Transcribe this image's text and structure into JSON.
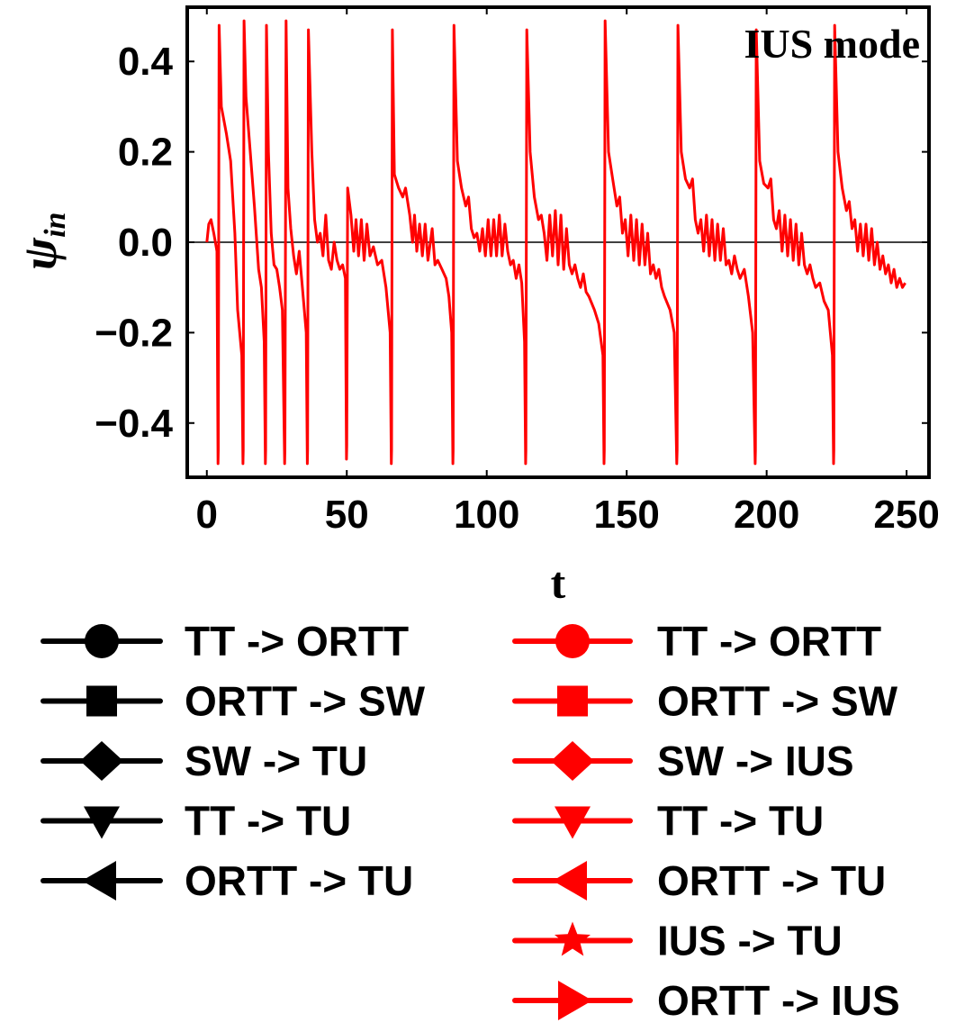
{
  "chart_data": {
    "type": "line",
    "title": "IUS mode",
    "xlabel": "t",
    "ylabel": {
      "symbol": "ψ",
      "subscript": "in"
    },
    "xlim": [
      -7,
      258
    ],
    "ylim": [
      -0.52,
      0.52
    ],
    "xticks": [
      {
        "value": 0,
        "label": "0"
      },
      {
        "value": 50,
        "label": "50"
      },
      {
        "value": 100,
        "label": "100"
      },
      {
        "value": 150,
        "label": "150"
      },
      {
        "value": 200,
        "label": "200"
      },
      {
        "value": 250,
        "label": "250"
      }
    ],
    "yticks": [
      {
        "value": 0.4,
        "label": "0.4"
      },
      {
        "value": 0.2,
        "label": "0.2"
      },
      {
        "value": 0.0,
        "label": "0.0"
      },
      {
        "value": -0.2,
        "label": "−0.2"
      },
      {
        "value": -0.4,
        "label": "−0.4"
      }
    ],
    "zero_line": true,
    "series": [
      {
        "color": "#ff0000",
        "spikes": [
          4,
          13,
          21,
          28,
          36,
          50,
          66,
          88,
          114,
          142,
          168,
          196,
          224
        ],
        "points": [
          [
            0,
            0.0
          ],
          [
            0.7,
            0.04
          ],
          [
            1.5,
            0.05
          ],
          [
            2.5,
            0.02
          ],
          [
            3.6,
            -0.02
          ],
          [
            4.0,
            -0.49
          ],
          [
            4.1,
            -0.46
          ],
          [
            4.4,
            0.48
          ],
          [
            5.2,
            0.3
          ],
          [
            7.0,
            0.24
          ],
          [
            8.5,
            0.18
          ],
          [
            10.0,
            0.02
          ],
          [
            11.0,
            -0.15
          ],
          [
            12.5,
            -0.25
          ],
          [
            12.9,
            -0.49
          ],
          [
            13.0,
            -0.46
          ],
          [
            13.3,
            0.49
          ],
          [
            14.0,
            0.32
          ],
          [
            15.5,
            0.2
          ],
          [
            17.0,
            0.08
          ],
          [
            18.5,
            -0.06
          ],
          [
            19.5,
            -0.1
          ],
          [
            20.5,
            -0.22
          ],
          [
            20.9,
            -0.49
          ],
          [
            21.0,
            -0.46
          ],
          [
            21.3,
            0.48
          ],
          [
            22.0,
            0.2
          ],
          [
            23.0,
            0.02
          ],
          [
            24.0,
            -0.05
          ],
          [
            25.0,
            -0.06
          ],
          [
            26.0,
            -0.1
          ],
          [
            27.0,
            -0.15
          ],
          [
            27.8,
            -0.49
          ],
          [
            27.9,
            -0.46
          ],
          [
            28.3,
            0.49
          ],
          [
            29.0,
            0.12
          ],
          [
            30.0,
            0.03
          ],
          [
            31.0,
            -0.03
          ],
          [
            32.0,
            -0.07
          ],
          [
            33.0,
            -0.02
          ],
          [
            34.0,
            -0.09
          ],
          [
            35.5,
            -0.2
          ],
          [
            35.9,
            -0.49
          ],
          [
            36.0,
            -0.46
          ],
          [
            36.3,
            0.47
          ],
          [
            37.5,
            0.2
          ],
          [
            38.5,
            0.05
          ],
          [
            39.5,
            0.0
          ],
          [
            40.5,
            0.02
          ],
          [
            41.5,
            -0.03
          ],
          [
            42.5,
            0.06
          ],
          [
            43.5,
            -0.04
          ],
          [
            44.5,
            -0.06
          ],
          [
            45.5,
            0.0
          ],
          [
            46.5,
            -0.04
          ],
          [
            47.5,
            -0.06
          ],
          [
            48.5,
            -0.05
          ],
          [
            49.5,
            -0.08
          ],
          [
            49.9,
            -0.48
          ],
          [
            50.0,
            -0.45
          ],
          [
            50.3,
            0.12
          ],
          [
            51.5,
            0.06
          ],
          [
            52.5,
            -0.02
          ],
          [
            53.3,
            0.05
          ],
          [
            54.2,
            -0.03
          ],
          [
            55.2,
            0.05
          ],
          [
            56.2,
            -0.04
          ],
          [
            57.2,
            0.04
          ],
          [
            58.3,
            -0.03
          ],
          [
            59.5,
            -0.01
          ],
          [
            61.0,
            -0.05
          ],
          [
            62.5,
            -0.04
          ],
          [
            64.0,
            -0.1
          ],
          [
            65.5,
            -0.2
          ],
          [
            65.9,
            -0.49
          ],
          [
            66.0,
            -0.46
          ],
          [
            66.3,
            0.47
          ],
          [
            67.0,
            0.15
          ],
          [
            68.5,
            0.12
          ],
          [
            70.0,
            0.1
          ],
          [
            71.0,
            0.12
          ],
          [
            72.5,
            0.06
          ],
          [
            73.5,
            0.0
          ],
          [
            74.2,
            0.06
          ],
          [
            75.0,
            -0.02
          ],
          [
            76.0,
            0.04
          ],
          [
            77.0,
            -0.03
          ],
          [
            78.0,
            0.04
          ],
          [
            79.0,
            -0.04
          ],
          [
            80.5,
            0.03
          ],
          [
            81.5,
            -0.05
          ],
          [
            82.5,
            -0.04
          ],
          [
            84.0,
            -0.06
          ],
          [
            85.5,
            -0.08
          ],
          [
            86.5,
            -0.12
          ],
          [
            87.5,
            -0.2
          ],
          [
            87.9,
            -0.49
          ],
          [
            88.0,
            -0.46
          ],
          [
            88.3,
            0.48
          ],
          [
            89.5,
            0.18
          ],
          [
            91.0,
            0.12
          ],
          [
            92.5,
            0.08
          ],
          [
            93.5,
            0.1
          ],
          [
            94.5,
            0.03
          ],
          [
            95.5,
            0.01
          ],
          [
            96.5,
            0.02
          ],
          [
            97.5,
            -0.02
          ],
          [
            98.5,
            0.03
          ],
          [
            99.5,
            -0.03
          ],
          [
            100.5,
            0.05
          ],
          [
            101.5,
            -0.03
          ],
          [
            102.5,
            0.05
          ],
          [
            103.5,
            -0.03
          ],
          [
            104.5,
            0.06
          ],
          [
            105.5,
            -0.03
          ],
          [
            106.5,
            0.04
          ],
          [
            107.5,
            -0.02
          ],
          [
            108.5,
            -0.05
          ],
          [
            109.5,
            -0.04
          ],
          [
            110.5,
            -0.08
          ],
          [
            111.5,
            -0.05
          ],
          [
            112.5,
            -0.09
          ],
          [
            113.5,
            -0.22
          ],
          [
            113.9,
            -0.49
          ],
          [
            114.0,
            -0.46
          ],
          [
            114.3,
            0.47
          ],
          [
            115.5,
            0.2
          ],
          [
            117.0,
            0.1
          ],
          [
            118.5,
            0.05
          ],
          [
            119.5,
            0.06
          ],
          [
            120.5,
            0.02
          ],
          [
            121.5,
            -0.04
          ],
          [
            122.5,
            0.06
          ],
          [
            123.5,
            -0.03
          ],
          [
            124.5,
            0.07
          ],
          [
            125.5,
            -0.05
          ],
          [
            126.5,
            0.06
          ],
          [
            127.5,
            -0.06
          ],
          [
            128.5,
            0.03
          ],
          [
            129.5,
            -0.05
          ],
          [
            130.5,
            -0.07
          ],
          [
            131.5,
            -0.05
          ],
          [
            132.5,
            -0.08
          ],
          [
            133.5,
            -0.1
          ],
          [
            134.5,
            -0.07
          ],
          [
            135.5,
            -0.11
          ],
          [
            136.5,
            -0.12
          ],
          [
            138.5,
            -0.15
          ],
          [
            140.0,
            -0.18
          ],
          [
            141.5,
            -0.25
          ],
          [
            141.9,
            -0.49
          ],
          [
            142.0,
            -0.46
          ],
          [
            142.3,
            0.49
          ],
          [
            143.5,
            0.2
          ],
          [
            145.0,
            0.14
          ],
          [
            146.5,
            0.08
          ],
          [
            147.5,
            0.1
          ],
          [
            148.5,
            0.02
          ],
          [
            149.5,
            0.05
          ],
          [
            150.5,
            -0.03
          ],
          [
            151.5,
            0.06
          ],
          [
            152.5,
            -0.04
          ],
          [
            153.5,
            0.05
          ],
          [
            154.5,
            -0.05
          ],
          [
            155.5,
            0.04
          ],
          [
            156.5,
            -0.05
          ],
          [
            157.5,
            0.02
          ],
          [
            158.5,
            -0.07
          ],
          [
            159.5,
            -0.05
          ],
          [
            160.5,
            -0.08
          ],
          [
            161.5,
            -0.06
          ],
          [
            162.5,
            -0.1
          ],
          [
            163.5,
            -0.12
          ],
          [
            165.5,
            -0.15
          ],
          [
            167.0,
            -0.2
          ],
          [
            167.9,
            -0.49
          ],
          [
            168.0,
            -0.46
          ],
          [
            168.3,
            0.48
          ],
          [
            169.5,
            0.2
          ],
          [
            171.0,
            0.14
          ],
          [
            172.5,
            0.12
          ],
          [
            173.5,
            0.14
          ],
          [
            174.5,
            0.05
          ],
          [
            175.5,
            0.02
          ],
          [
            176.5,
            0.05
          ],
          [
            177.5,
            -0.02
          ],
          [
            178.5,
            0.06
          ],
          [
            179.5,
            -0.03
          ],
          [
            180.5,
            0.05
          ],
          [
            181.5,
            -0.04
          ],
          [
            182.5,
            0.04
          ],
          [
            183.5,
            -0.04
          ],
          [
            184.5,
            0.03
          ],
          [
            185.5,
            -0.05
          ],
          [
            186.5,
            -0.04
          ],
          [
            187.5,
            -0.07
          ],
          [
            188.5,
            -0.03
          ],
          [
            189.5,
            -0.06
          ],
          [
            190.5,
            -0.08
          ],
          [
            192.0,
            -0.06
          ],
          [
            193.5,
            -0.12
          ],
          [
            195.0,
            -0.2
          ],
          [
            195.9,
            -0.49
          ],
          [
            196.0,
            -0.46
          ],
          [
            196.3,
            0.47
          ],
          [
            197.5,
            0.18
          ],
          [
            199.0,
            0.13
          ],
          [
            200.5,
            0.12
          ],
          [
            201.5,
            0.14
          ],
          [
            202.5,
            0.05
          ],
          [
            203.5,
            0.03
          ],
          [
            204.5,
            0.07
          ],
          [
            205.5,
            -0.02
          ],
          [
            206.5,
            0.06
          ],
          [
            207.5,
            -0.03
          ],
          [
            208.5,
            0.05
          ],
          [
            209.5,
            -0.04
          ],
          [
            210.5,
            0.04
          ],
          [
            211.5,
            -0.05
          ],
          [
            212.5,
            0.02
          ],
          [
            213.5,
            -0.05
          ],
          [
            214.5,
            -0.07
          ],
          [
            215.5,
            -0.05
          ],
          [
            216.5,
            -0.08
          ],
          [
            217.5,
            -0.1
          ],
          [
            219.0,
            -0.09
          ],
          [
            220.5,
            -0.13
          ],
          [
            222.0,
            -0.15
          ],
          [
            223.5,
            -0.25
          ],
          [
            223.9,
            -0.49
          ],
          [
            224.0,
            -0.46
          ],
          [
            224.3,
            0.48
          ],
          [
            225.5,
            0.2
          ],
          [
            227.0,
            0.12
          ],
          [
            228.5,
            0.07
          ],
          [
            229.5,
            0.09
          ],
          [
            230.5,
            0.03
          ],
          [
            231.5,
            0.05
          ],
          [
            232.5,
            -0.02
          ],
          [
            233.5,
            0.04
          ],
          [
            234.5,
            -0.03
          ],
          [
            235.5,
            0.04
          ],
          [
            236.5,
            -0.04
          ],
          [
            237.5,
            0.03
          ],
          [
            238.5,
            -0.05
          ],
          [
            239.5,
            0.0
          ],
          [
            240.5,
            -0.06
          ],
          [
            241.5,
            -0.03
          ],
          [
            242.5,
            -0.07
          ],
          [
            243.5,
            -0.05
          ],
          [
            244.5,
            -0.09
          ],
          [
            245.5,
            -0.06
          ],
          [
            246.5,
            -0.1
          ],
          [
            247.5,
            -0.08
          ],
          [
            248.5,
            -0.1
          ],
          [
            249.5,
            -0.09
          ]
        ]
      }
    ],
    "legend": {
      "placement": "bottom",
      "columns": [
        [
          {
            "label": "TT -> ORTT",
            "color": "#000000",
            "marker": "circle"
          },
          {
            "label": "ORTT -> SW",
            "color": "#000000",
            "marker": "square"
          },
          {
            "label": "SW -> TU",
            "color": "#000000",
            "marker": "diamond"
          },
          {
            "label": "TT -> TU",
            "color": "#000000",
            "marker": "triangle-down"
          },
          {
            "label": "ORTT -> TU",
            "color": "#000000",
            "marker": "triangle-left"
          }
        ],
        [
          {
            "label": "TT -> ORTT",
            "color": "#ff0000",
            "marker": "circle"
          },
          {
            "label": "ORTT -> SW",
            "color": "#ff0000",
            "marker": "square"
          },
          {
            "label": "SW -> IUS",
            "color": "#ff0000",
            "marker": "diamond"
          },
          {
            "label": "TT -> TU",
            "color": "#ff0000",
            "marker": "triangle-down"
          },
          {
            "label": "ORTT -> TU",
            "color": "#ff0000",
            "marker": "triangle-left"
          },
          {
            "label": "IUS -> TU",
            "color": "#ff0000",
            "marker": "star"
          },
          {
            "label": "ORTT -> IUS",
            "color": "#ff0000",
            "marker": "triangle-right"
          }
        ]
      ]
    }
  }
}
